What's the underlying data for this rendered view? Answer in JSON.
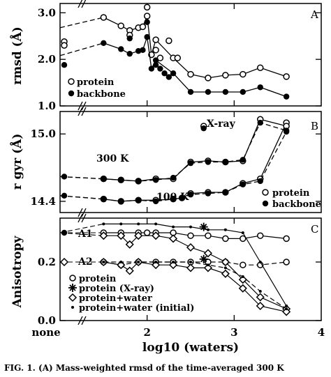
{
  "caption": "FIG. 1.  (A) Mass-weighted rmsd of the time-averaged 300 K",
  "chart_data": [
    {
      "panel": "A",
      "type": "line",
      "ylabel": "rmsd (Å)",
      "ylim": [
        1.0,
        3.2
      ],
      "yticks": [
        "1.0",
        "2.0",
        "3.0"
      ],
      "grid": false,
      "legend_position": "bottom-left",
      "series": [
        {
          "name": "protein",
          "marker": "open-circle",
          "points": [
            [
              1.5,
              2.9
            ],
            [
              1.7,
              2.72
            ],
            [
              1.8,
              2.62
            ],
            [
              1.9,
              2.68
            ],
            [
              1.95,
              2.7
            ],
            [
              2.0,
              2.93
            ],
            [
              2.05,
              2.1
            ],
            [
              2.1,
              2.42
            ],
            [
              2.3,
              2.03
            ],
            [
              2.5,
              1.68
            ],
            [
              2.7,
              1.6
            ],
            [
              2.9,
              1.66
            ],
            [
              3.1,
              1.68
            ],
            [
              3.3,
              1.82
            ],
            [
              3.6,
              1.63
            ]
          ],
          "scatter": [
            [
              2.0,
              3.12
            ],
            [
              1.8,
              2.52
            ],
            [
              2.1,
              2.2
            ],
            [
              2.15,
              2.03
            ],
            [
              2.25,
              2.4
            ],
            [
              2.35,
              2.03
            ]
          ]
        },
        {
          "name": "backbone",
          "marker": "filled-circle",
          "points": [
            [
              1.5,
              2.35
            ],
            [
              1.7,
              2.22
            ],
            [
              1.8,
              2.12
            ],
            [
              1.9,
              2.18
            ],
            [
              1.95,
              2.2
            ],
            [
              2.0,
              2.48
            ],
            [
              2.05,
              1.8
            ],
            [
              2.1,
              1.98
            ],
            [
              2.3,
              1.7
            ],
            [
              2.5,
              1.3
            ],
            [
              2.7,
              1.3
            ],
            [
              2.9,
              1.3
            ],
            [
              3.1,
              1.3
            ],
            [
              3.3,
              1.4
            ],
            [
              3.6,
              1.2
            ]
          ],
          "scatter": [
            [
              2.0,
              2.8
            ],
            [
              1.8,
              2.45
            ],
            [
              2.1,
              1.88
            ],
            [
              2.15,
              1.8
            ],
            [
              2.2,
              1.7
            ],
            [
              2.25,
              1.62
            ]
          ]
        }
      ],
      "none_values": {
        "protein": [
          2.38,
          2.3
        ],
        "backbone": [
          1.88
        ]
      }
    },
    {
      "panel": "B",
      "type": "line",
      "ylabel": "r gyr (Å)",
      "ylim": [
        14.3,
        15.2
      ],
      "yticks": [
        "14.4",
        "15.0"
      ],
      "grid": false,
      "legend_position": "bottom-right",
      "annotations": [
        "X-ray",
        "300 K",
        "100 K"
      ],
      "series": [
        {
          "name": "protein",
          "marker": "open-circle",
          "points": [
            [
              1.5,
              14.42
            ],
            [
              1.7,
              14.4
            ],
            [
              1.9,
              14.41
            ],
            [
              2.1,
              14.41
            ],
            [
              2.3,
              14.42
            ],
            [
              2.4,
              14.43
            ],
            [
              2.5,
              14.47
            ],
            [
              2.7,
              14.48
            ],
            [
              2.9,
              14.48
            ],
            [
              3.1,
              14.56
            ],
            [
              3.3,
              14.6
            ],
            [
              3.6,
              15.1
            ]
          ],
          "points_300": [
            [
              1.5,
              14.6
            ],
            [
              1.7,
              14.59
            ],
            [
              1.9,
              14.58
            ],
            [
              2.1,
              14.6
            ],
            [
              2.3,
              14.6
            ],
            [
              2.5,
              14.75
            ],
            [
              2.7,
              14.76
            ],
            [
              2.9,
              14.75
            ],
            [
              3.1,
              14.76
            ],
            [
              3.3,
              15.13
            ],
            [
              3.6,
              15.07
            ]
          ]
        },
        {
          "name": "backbone",
          "marker": "filled-circle",
          "points": [
            [
              1.5,
              14.42
            ],
            [
              1.7,
              14.4
            ],
            [
              1.9,
              14.41
            ],
            [
              2.1,
              14.4
            ],
            [
              2.3,
              14.42
            ],
            [
              2.4,
              14.43
            ],
            [
              2.5,
              14.46
            ],
            [
              2.7,
              14.47
            ],
            [
              2.9,
              14.48
            ],
            [
              3.1,
              14.55
            ],
            [
              3.3,
              14.58
            ],
            [
              3.6,
              15.02
            ]
          ],
          "points_300": [
            [
              1.5,
              14.6
            ],
            [
              1.7,
              14.59
            ],
            [
              1.9,
              14.58
            ],
            [
              2.1,
              14.59
            ],
            [
              2.3,
              14.61
            ],
            [
              2.5,
              14.74
            ],
            [
              2.7,
              14.75
            ],
            [
              2.9,
              14.75
            ],
            [
              3.1,
              14.77
            ],
            [
              3.3,
              15.1
            ],
            [
              3.6,
              15.03
            ]
          ]
        }
      ],
      "xray": {
        "protein": 15.07,
        "backbone": 15.05
      },
      "none_values": {
        "300K": 14.62,
        "100K": 14.45
      }
    },
    {
      "panel": "C",
      "type": "line",
      "ylabel": "Anisotropy",
      "ylim": [
        0.0,
        0.35
      ],
      "yticks": [
        "0.0",
        "0.2"
      ],
      "xlabel": "log10 (waters)",
      "xticks": [
        "none",
        "2",
        "3",
        "4"
      ],
      "grid": false,
      "legend_position": "bottom-left",
      "annotations": [
        "A1",
        "A2"
      ],
      "series": [
        {
          "name": "protein",
          "marker": "open-circle",
          "A1": [
            [
              1.5,
              0.3
            ],
            [
              1.7,
              0.3
            ],
            [
              1.9,
              0.3
            ],
            [
              2.0,
              0.3
            ],
            [
              2.1,
              0.3
            ],
            [
              2.3,
              0.3
            ],
            [
              2.5,
              0.29
            ],
            [
              2.7,
              0.29
            ],
            [
              2.9,
              0.28
            ],
            [
              3.1,
              0.28
            ],
            [
              3.3,
              0.29
            ],
            [
              3.6,
              0.28
            ]
          ],
          "A2": [
            [
              1.5,
              0.2
            ],
            [
              1.7,
              0.19
            ],
            [
              1.9,
              0.2
            ],
            [
              2.1,
              0.2
            ],
            [
              2.3,
              0.2
            ],
            [
              2.5,
              0.2
            ],
            [
              2.7,
              0.2
            ],
            [
              2.9,
              0.2
            ],
            [
              3.1,
              0.19
            ],
            [
              3.3,
              0.19
            ],
            [
              3.6,
              0.2
            ]
          ]
        },
        {
          "name": "protein (X-ray)",
          "marker": "asterisk",
          "points": [
            [
              2.65,
              0.32
            ],
            [
              2.65,
              0.21
            ]
          ]
        },
        {
          "name": "protein+water",
          "marker": "open-diamond",
          "A1": [
            [
              1.5,
              0.29
            ],
            [
              1.7,
              0.29
            ],
            [
              1.8,
              0.26
            ],
            [
              1.9,
              0.29
            ],
            [
              2.1,
              0.29
            ],
            [
              2.3,
              0.28
            ],
            [
              2.5,
              0.25
            ],
            [
              2.7,
              0.23
            ],
            [
              2.9,
              0.2
            ],
            [
              3.1,
              0.14
            ],
            [
              3.3,
              0.08
            ],
            [
              3.6,
              0.04
            ]
          ],
          "A2": [
            [
              1.5,
              0.2
            ],
            [
              1.7,
              0.19
            ],
            [
              1.8,
              0.17
            ],
            [
              1.9,
              0.2
            ],
            [
              2.1,
              0.19
            ],
            [
              2.3,
              0.19
            ],
            [
              2.5,
              0.18
            ],
            [
              2.7,
              0.18
            ],
            [
              2.9,
              0.16
            ],
            [
              3.1,
              0.11
            ],
            [
              3.3,
              0.05
            ],
            [
              3.6,
              0.03
            ]
          ]
        },
        {
          "name": "protein+water (initial)",
          "marker": "small-dot",
          "A1": [
            [
              1.5,
              0.33
            ],
            [
              1.7,
              0.33
            ],
            [
              1.9,
              0.33
            ],
            [
              2.1,
              0.33
            ],
            [
              2.3,
              0.32
            ],
            [
              2.5,
              0.32
            ],
            [
              2.7,
              0.31
            ],
            [
              2.9,
              0.31
            ],
            [
              3.1,
              0.3
            ],
            [
              3.3,
              0.2
            ],
            [
              3.6,
              0.05
            ]
          ],
          "A2": [
            [
              1.5,
              0.2
            ],
            [
              1.7,
              0.2
            ],
            [
              1.9,
              0.2
            ],
            [
              2.1,
              0.2
            ],
            [
              2.3,
              0.2
            ],
            [
              2.5,
              0.2
            ],
            [
              2.7,
              0.19
            ],
            [
              2.9,
              0.18
            ],
            [
              3.1,
              0.15
            ],
            [
              3.3,
              0.1
            ],
            [
              3.6,
              0.04
            ]
          ]
        }
      ],
      "none_values": {
        "A1": 0.3,
        "A2": 0.2
      }
    }
  ],
  "axes": {
    "x_range": [
      1.0,
      4.0
    ],
    "panel_letters": [
      "A",
      "B",
      "C"
    ]
  },
  "colors": {
    "ink": "#000000",
    "background": "#ffffff"
  }
}
